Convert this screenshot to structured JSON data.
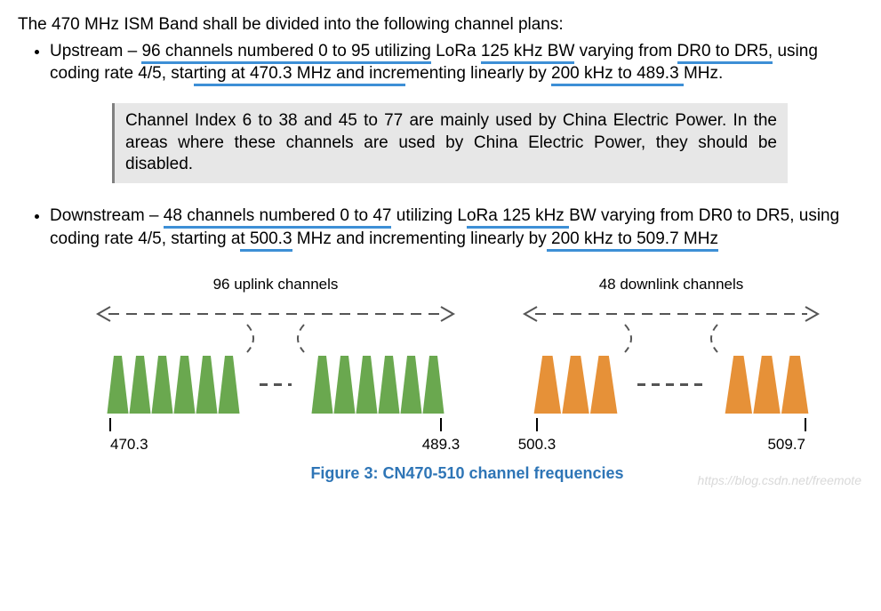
{
  "intro": "The 470 MHz ISM Band shall be divided into the following channel plans:",
  "upstream": {
    "prefix": "Upstream – ",
    "u1": "96 channels numbered 0 to 95 utilizing",
    "mid1": " LoRa ",
    "u2": "125 kHz BW",
    "mid2": " varying from ",
    "u3": "DR0 to DR5,",
    "mid3": " using coding rate 4/5, sta",
    "u4": "rting at 470.3 MHz and incre",
    "mid4": "menting linearly by ",
    "u5": "200 kHz to 489.3 ",
    "tail": "MHz."
  },
  "note": "Channel Index 6 to 38 and 45 to 77 are mainly used by China Electric Power. In the areas where these channels are used by China Electric Power, they should be disabled.",
  "downstream": {
    "prefix": "Downstream – ",
    "u1": "48 channels numbered 0 to 47",
    "mid1": " utilizing L",
    "u2": "oRa 125 kHz ",
    "mid2": "BW varying from DR0 to DR5, using coding rate 4/5, starting a",
    "u3": "t 500.3",
    "mid3": " MHz and incrementing linearly by",
    "u4": " 200 kHz to 509.7 MHz",
    "tail": ""
  },
  "diagram": {
    "uplink_label": "96 uplink channels",
    "downlink_label": "48 downlink channels",
    "f1": "470.3",
    "f2": "489.3",
    "f3": "500.3",
    "f4": "509.7",
    "uplink_color": "#6aa84f",
    "downlink_color": "#e69138",
    "dash_color": "#555555",
    "tick_color": "#000000",
    "uplink_channels_per_group": 6,
    "downlink_channels_per_group": 3
  },
  "caption": "Figure 3: CN470-510 channel frequencies",
  "watermark": "https://blog.csdn.net/freemote"
}
